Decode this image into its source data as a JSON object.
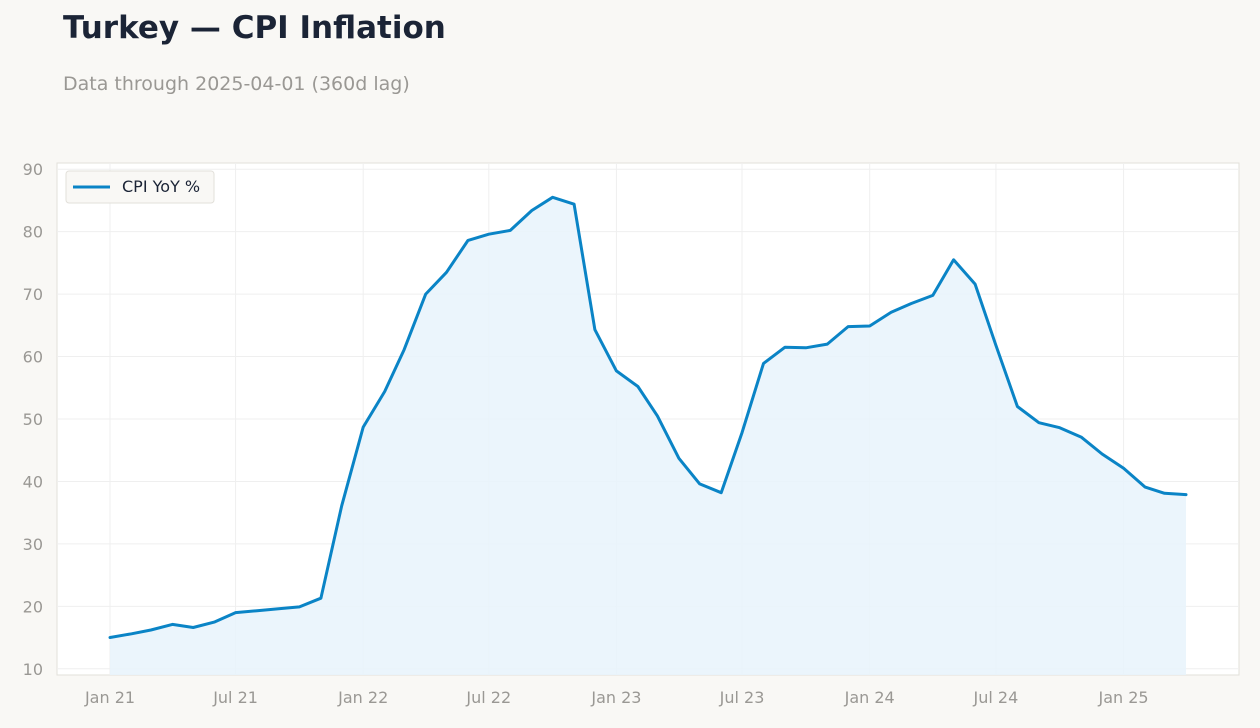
{
  "header": {
    "title": "Turkey — CPI Inflation",
    "subtitle": "Data through 2025-04-01 (360d lag)"
  },
  "colors": {
    "line": "#0a84c6",
    "fill": "#e8f3fb",
    "grid": "#efefef",
    "background": "#f9f8f5"
  },
  "chart_data": {
    "type": "line",
    "title": "Turkey — CPI Inflation",
    "xlabel": "",
    "ylabel": "",
    "ylim": [
      9,
      91
    ],
    "grid": true,
    "legend_position": "top-left",
    "area_fill": true,
    "x_ticks": [
      "2021-01-01",
      "2021-07-01",
      "2022-01-01",
      "2022-07-01",
      "2023-01-01",
      "2023-07-01",
      "2024-01-01",
      "2024-07-01",
      "2025-01-01"
    ],
    "x_tick_labels": [
      "Jan 21",
      "Jul 21",
      "Jan 22",
      "Jul 22",
      "Jan 23",
      "Jul 23",
      "Jan 24",
      "Jul 24",
      "Jan 25"
    ],
    "y_ticks": [
      10,
      20,
      30,
      40,
      50,
      60,
      70,
      80,
      90
    ],
    "x": [
      "2021-01-01",
      "2021-02-01",
      "2021-03-01",
      "2021-04-01",
      "2021-05-01",
      "2021-06-01",
      "2021-07-01",
      "2021-08-01",
      "2021-09-01",
      "2021-10-01",
      "2021-11-01",
      "2021-12-01",
      "2022-01-01",
      "2022-02-01",
      "2022-03-01",
      "2022-04-01",
      "2022-05-01",
      "2022-06-01",
      "2022-07-01",
      "2022-08-01",
      "2022-09-01",
      "2022-10-01",
      "2022-11-01",
      "2022-12-01",
      "2023-01-01",
      "2023-02-01",
      "2023-03-01",
      "2023-04-01",
      "2023-05-01",
      "2023-06-01",
      "2023-07-01",
      "2023-08-01",
      "2023-09-01",
      "2023-10-01",
      "2023-11-01",
      "2023-12-01",
      "2024-01-01",
      "2024-02-01",
      "2024-03-01",
      "2024-04-01",
      "2024-05-01",
      "2024-06-01",
      "2024-07-01",
      "2024-08-01",
      "2024-09-01",
      "2024-10-01",
      "2024-11-01",
      "2024-12-01",
      "2025-01-01",
      "2025-02-01",
      "2025-03-01",
      "2025-04-01"
    ],
    "series": [
      {
        "name": "CPI YoY %",
        "values": [
          15.0,
          15.6,
          16.2,
          17.1,
          16.6,
          17.5,
          19.0,
          19.3,
          19.6,
          19.9,
          21.3,
          36.1,
          48.7,
          54.4,
          61.1,
          70.0,
          73.5,
          78.6,
          79.6,
          80.2,
          83.4,
          85.5,
          84.4,
          64.3,
          57.7,
          55.2,
          50.5,
          43.7,
          39.6,
          38.2,
          47.8,
          58.9,
          61.5,
          61.4,
          62.0,
          64.8,
          64.9,
          67.1,
          68.5,
          69.8,
          75.5,
          71.6,
          61.8,
          52.0,
          49.4,
          48.6,
          47.1,
          44.4,
          42.1,
          39.1,
          38.1,
          37.9
        ]
      }
    ]
  }
}
